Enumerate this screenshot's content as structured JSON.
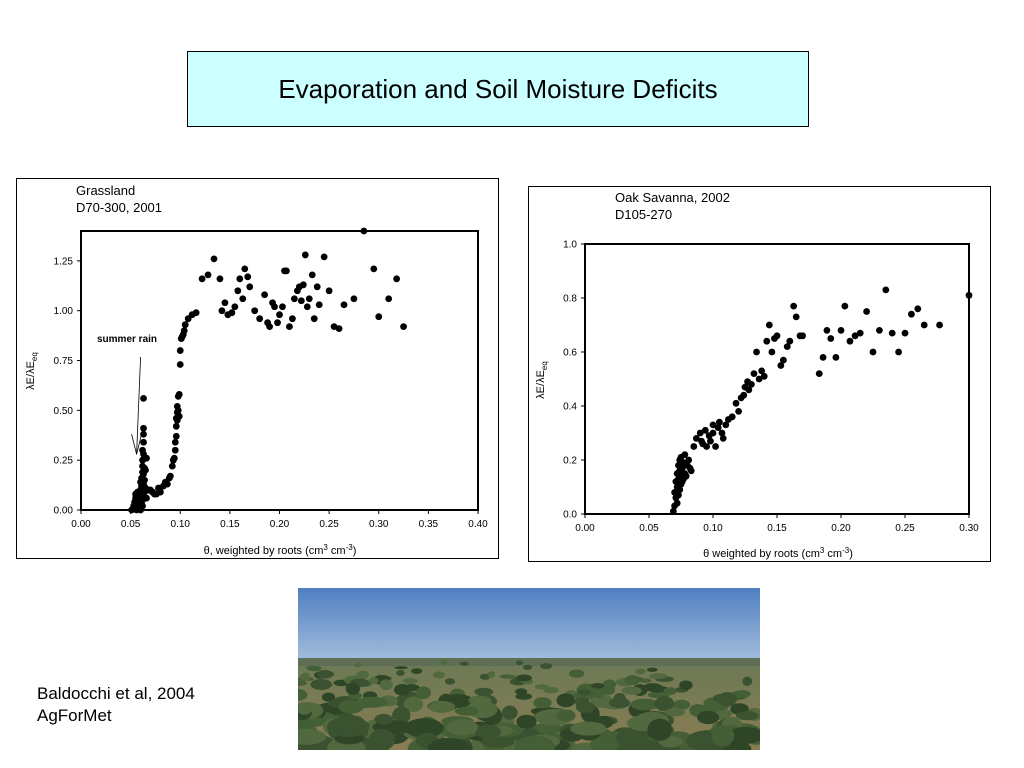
{
  "page": {
    "title": "Evaporation and Soil Moisture Deficits",
    "citation_line1": "Baldocchi et al, 2004",
    "citation_line2": "AgForMet",
    "colors": {
      "title_box_bg": "#ccffff",
      "marker": "#000000",
      "sky": "#5b86c4",
      "vegetation": "#3f5a32",
      "soil": "#c9b07a"
    },
    "photo_icon": "landscape-photo-oak-savanna"
  },
  "chart_data": [
    {
      "type": "scatter",
      "title_line1": "Grassland",
      "title_line2": "D70-300, 2001",
      "xlabel_prefix": "θ, weighted by roots (cm",
      "xlabel_sup1": "3",
      "xlabel_mid": " cm",
      "xlabel_sup2": "-3",
      "xlabel_suffix": ")",
      "ylabel_main": "λE/λE",
      "ylabel_sub": "eq",
      "xlim": [
        0.0,
        0.4
      ],
      "ylim": [
        0.0,
        1.4
      ],
      "xticks": [
        "0.00",
        "0.05",
        "0.10",
        "0.15",
        "0.20",
        "0.25",
        "0.30",
        "0.35",
        "0.40"
      ],
      "yticks": [
        "0.00",
        "0.25",
        "0.50",
        "0.75",
        "1.00",
        "1.25"
      ],
      "annotation": {
        "text": "summer rain",
        "arrow_to": [
          0.056,
          0.38
        ]
      },
      "grid": false,
      "x": [
        0.051,
        0.053,
        0.054,
        0.055,
        0.055,
        0.056,
        0.056,
        0.057,
        0.057,
        0.058,
        0.058,
        0.059,
        0.059,
        0.06,
        0.06,
        0.06,
        0.06,
        0.061,
        0.061,
        0.061,
        0.061,
        0.062,
        0.062,
        0.062,
        0.062,
        0.062,
        0.062,
        0.063,
        0.063,
        0.063,
        0.063,
        0.063,
        0.063,
        0.063,
        0.063,
        0.063,
        0.064,
        0.064,
        0.064,
        0.064,
        0.065,
        0.065,
        0.066,
        0.066,
        0.068,
        0.07,
        0.072,
        0.074,
        0.076,
        0.078,
        0.08,
        0.083,
        0.085,
        0.087,
        0.089,
        0.09,
        0.092,
        0.093,
        0.094,
        0.095,
        0.095,
        0.096,
        0.096,
        0.096,
        0.097,
        0.097,
        0.097,
        0.098,
        0.098,
        0.098,
        0.099,
        0.099,
        0.1,
        0.1,
        0.101,
        0.102,
        0.103,
        0.104,
        0.105,
        0.108,
        0.112,
        0.116,
        0.122,
        0.128,
        0.134,
        0.14,
        0.142,
        0.145,
        0.148,
        0.152,
        0.155,
        0.158,
        0.16,
        0.163,
        0.165,
        0.168,
        0.17,
        0.175,
        0.18,
        0.185,
        0.188,
        0.19,
        0.193,
        0.195,
        0.198,
        0.2,
        0.203,
        0.205,
        0.207,
        0.21,
        0.213,
        0.215,
        0.218,
        0.22,
        0.222,
        0.224,
        0.226,
        0.228,
        0.23,
        0.233,
        0.235,
        0.238,
        0.24,
        0.245,
        0.25,
        0.255,
        0.26,
        0.265,
        0.275,
        0.285,
        0.295,
        0.3,
        0.31,
        0.318,
        0.325
      ],
      "y": [
        0.0,
        0.02,
        0.04,
        0.06,
        0.08,
        0.0,
        0.03,
        0.05,
        0.09,
        0.01,
        0.07,
        0.02,
        0.04,
        0.0,
        0.06,
        0.1,
        0.14,
        0.03,
        0.08,
        0.12,
        0.16,
        0.02,
        0.05,
        0.19,
        0.22,
        0.25,
        0.3,
        0.1,
        0.18,
        0.28,
        0.34,
        0.38,
        0.41,
        0.56,
        0.07,
        0.13,
        0.15,
        0.21,
        0.26,
        0.09,
        0.11,
        0.2,
        0.06,
        0.26,
        0.1,
        0.1,
        0.09,
        0.08,
        0.08,
        0.11,
        0.09,
        0.12,
        0.14,
        0.13,
        0.16,
        0.17,
        0.22,
        0.25,
        0.26,
        0.3,
        0.34,
        0.37,
        0.42,
        0.46,
        0.45,
        0.49,
        0.52,
        0.5,
        0.47,
        0.57,
        0.58,
        0.47,
        0.73,
        0.8,
        0.86,
        0.87,
        0.88,
        0.9,
        0.93,
        0.96,
        0.98,
        0.99,
        1.16,
        1.18,
        1.26,
        1.16,
        1.0,
        1.04,
        0.98,
        0.99,
        1.02,
        1.1,
        1.16,
        1.06,
        1.21,
        1.17,
        1.12,
        1.0,
        0.96,
        1.08,
        0.94,
        0.92,
        1.04,
        1.02,
        0.94,
        0.98,
        1.02,
        1.2,
        1.2,
        0.92,
        0.96,
        1.06,
        1.1,
        1.12,
        1.05,
        1.13,
        1.28,
        1.02,
        1.06,
        1.18,
        0.96,
        1.12,
        1.03,
        1.27,
        1.1,
        0.92,
        0.91,
        1.03,
        1.06,
        1.4,
        1.21,
        0.97,
        1.06,
        1.16,
        0.92
      ]
    },
    {
      "type": "scatter",
      "title_line1": "Oak Savanna, 2002",
      "title_line2": "D105-270",
      "xlabel_prefix": "θ  weighted by roots (cm",
      "xlabel_sup1": "3",
      "xlabel_mid": " cm",
      "xlabel_sup2": "-3",
      "xlabel_suffix": ")",
      "ylabel_main": "λE/λE",
      "ylabel_sub": "eq",
      "xlim": [
        0.0,
        0.3
      ],
      "ylim": [
        0.0,
        1.0
      ],
      "xticks": [
        "0.00",
        "0.05",
        "0.10",
        "0.15",
        "0.20",
        "0.25",
        "0.30"
      ],
      "yticks": [
        "0.0",
        "0.2",
        "0.4",
        "0.6",
        "0.8",
        "1.0"
      ],
      "grid": false,
      "x": [
        0.069,
        0.07,
        0.07,
        0.071,
        0.071,
        0.072,
        0.072,
        0.072,
        0.073,
        0.073,
        0.073,
        0.074,
        0.074,
        0.074,
        0.075,
        0.075,
        0.075,
        0.076,
        0.076,
        0.077,
        0.077,
        0.078,
        0.078,
        0.079,
        0.08,
        0.081,
        0.082,
        0.083,
        0.085,
        0.087,
        0.09,
        0.091,
        0.092,
        0.094,
        0.095,
        0.097,
        0.098,
        0.1,
        0.1,
        0.102,
        0.104,
        0.105,
        0.107,
        0.108,
        0.11,
        0.112,
        0.115,
        0.118,
        0.12,
        0.122,
        0.124,
        0.125,
        0.127,
        0.128,
        0.13,
        0.132,
        0.134,
        0.136,
        0.138,
        0.14,
        0.142,
        0.144,
        0.146,
        0.148,
        0.15,
        0.153,
        0.155,
        0.158,
        0.16,
        0.163,
        0.165,
        0.168,
        0.17,
        0.183,
        0.186,
        0.189,
        0.192,
        0.196,
        0.2,
        0.203,
        0.207,
        0.211,
        0.215,
        0.22,
        0.225,
        0.23,
        0.235,
        0.24,
        0.245,
        0.25,
        0.255,
        0.26,
        0.265,
        0.277,
        0.3
      ],
      "y": [
        0.01,
        0.03,
        0.08,
        0.06,
        0.12,
        0.04,
        0.1,
        0.15,
        0.07,
        0.13,
        0.18,
        0.09,
        0.16,
        0.2,
        0.11,
        0.14,
        0.21,
        0.12,
        0.17,
        0.13,
        0.19,
        0.15,
        0.22,
        0.14,
        0.18,
        0.2,
        0.17,
        0.16,
        0.25,
        0.28,
        0.3,
        0.27,
        0.26,
        0.31,
        0.25,
        0.29,
        0.27,
        0.33,
        0.3,
        0.25,
        0.32,
        0.34,
        0.3,
        0.28,
        0.33,
        0.35,
        0.36,
        0.41,
        0.38,
        0.43,
        0.44,
        0.47,
        0.49,
        0.46,
        0.48,
        0.52,
        0.6,
        0.5,
        0.53,
        0.51,
        0.64,
        0.7,
        0.6,
        0.65,
        0.66,
        0.55,
        0.57,
        0.62,
        0.64,
        0.77,
        0.73,
        0.66,
        0.66,
        0.52,
        0.58,
        0.68,
        0.65,
        0.58,
        0.68,
        0.77,
        0.64,
        0.66,
        0.67,
        0.75,
        0.6,
        0.68,
        0.83,
        0.67,
        0.6,
        0.67,
        0.74,
        0.76,
        0.7,
        0.7,
        0.81
      ]
    }
  ]
}
